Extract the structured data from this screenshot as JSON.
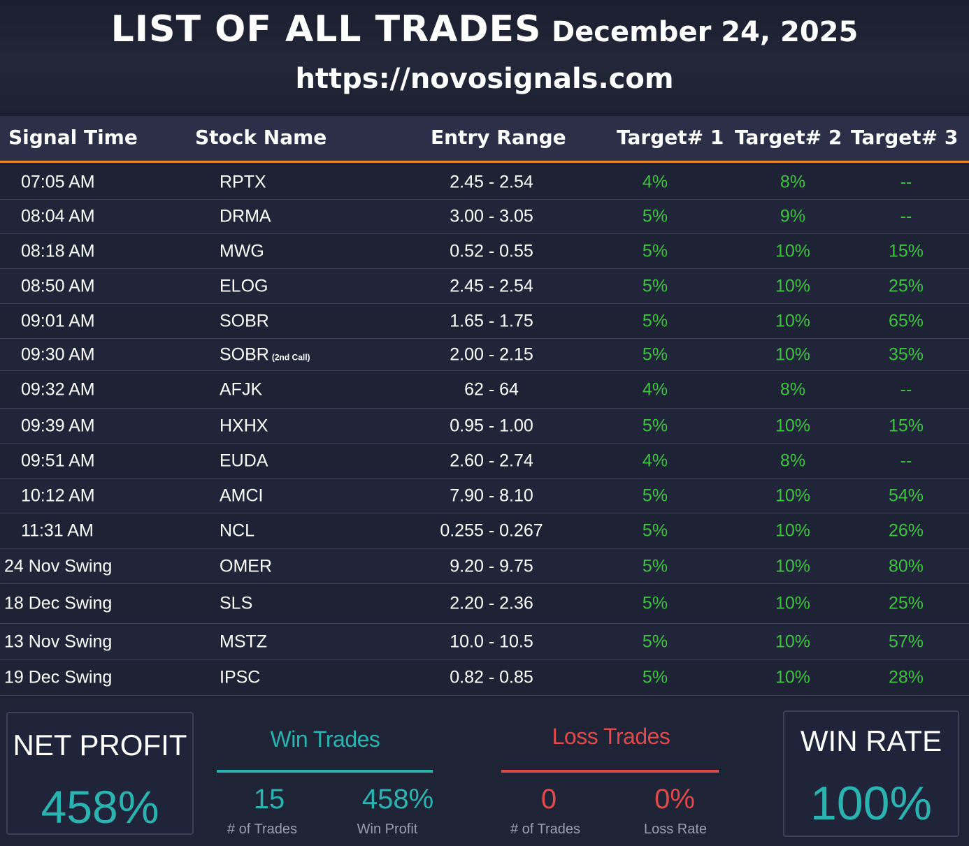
{
  "header": {
    "title": "LIST OF ALL TRADES",
    "date": "December 24, 2025",
    "url": "https://novosignals.com"
  },
  "table": {
    "columns": [
      "Signal Time",
      "Stock Name",
      "Entry Range",
      "Target# 1",
      "Target# 2",
      "Target# 3"
    ],
    "rows": [
      {
        "time": "07:05 AM",
        "stock": "RPTX",
        "note": "",
        "entry": "2.45 - 2.54",
        "t1": "4%",
        "t2": "8%",
        "t3": "--"
      },
      {
        "time": "08:04 AM",
        "stock": "DRMA",
        "note": "",
        "entry": "3.00 - 3.05",
        "t1": "5%",
        "t2": "9%",
        "t3": "--"
      },
      {
        "time": "08:18 AM",
        "stock": "MWG",
        "note": "",
        "entry": "0.52 - 0.55",
        "t1": "5%",
        "t2": "10%",
        "t3": "15%"
      },
      {
        "time": "08:50 AM",
        "stock": "ELOG",
        "note": "",
        "entry": "2.45 - 2.54",
        "t1": "5%",
        "t2": "10%",
        "t3": "25%"
      },
      {
        "time": "09:01 AM",
        "stock": "SOBR",
        "note": "",
        "entry": "1.65 - 1.75",
        "t1": "5%",
        "t2": "10%",
        "t3": "65%"
      },
      {
        "time": "09:30 AM",
        "stock": "SOBR",
        "note": "(2nd Call)",
        "entry": "2.00 - 2.15",
        "t1": "5%",
        "t2": "10%",
        "t3": "35%"
      },
      {
        "time": "09:32 AM",
        "stock": "AFJK",
        "note": "",
        "entry": "62 - 64",
        "t1": "4%",
        "t2": "8%",
        "t3": "--"
      },
      {
        "time": "09:39 AM",
        "stock": "HXHX",
        "note": "",
        "entry": "0.95 - 1.00",
        "t1": "5%",
        "t2": "10%",
        "t3": "15%"
      },
      {
        "time": "09:51 AM",
        "stock": "EUDA",
        "note": "",
        "entry": "2.60 - 2.74",
        "t1": "4%",
        "t2": "8%",
        "t3": "--"
      },
      {
        "time": "10:12 AM",
        "stock": "AMCI",
        "note": "",
        "entry": "7.90 - 8.10",
        "t1": "5%",
        "t2": "10%",
        "t3": "54%"
      },
      {
        "time": "11:31 AM",
        "stock": "NCL",
        "note": "",
        "entry": "0.255 - 0.267",
        "t1": "5%",
        "t2": "10%",
        "t3": "26%"
      },
      {
        "time": "24 Nov Swing",
        "stock": "OMER",
        "note": "",
        "entry": "9.20 - 9.75",
        "t1": "5%",
        "t2": "10%",
        "t3": "80%"
      },
      {
        "time": "18 Dec Swing",
        "stock": "SLS",
        "note": "",
        "entry": "2.20 - 2.36",
        "t1": "5%",
        "t2": "10%",
        "t3": "25%"
      },
      {
        "time": "13 Nov Swing",
        "stock": "MSTZ",
        "note": "",
        "entry": "10.0 - 10.5",
        "t1": "5%",
        "t2": "10%",
        "t3": "57%"
      },
      {
        "time": "19 Dec Swing",
        "stock": "IPSC",
        "note": "",
        "entry": "0.82 - 0.85",
        "t1": "5%",
        "t2": "10%",
        "t3": "28%"
      }
    ]
  },
  "summary": {
    "net_profit_label": "NET PROFIT",
    "net_profit_value": "458%",
    "win_trades": {
      "title": "Win Trades",
      "count": "15",
      "count_caption": "# of Trades",
      "profit": "458%",
      "profit_caption": "Win Profit"
    },
    "loss_trades": {
      "title": "Loss Trades",
      "count": "0",
      "count_caption": "# of Trades",
      "rate": "0%",
      "rate_caption": "Loss Rate"
    },
    "win_rate_label": "WIN RATE",
    "win_rate_value": "100%"
  },
  "colors": {
    "background": "#1c2033",
    "accent_orange": "#e8862c",
    "target_green": "#3fc23f",
    "teal": "#2bb3b0",
    "loss_red": "#e04a4a"
  }
}
